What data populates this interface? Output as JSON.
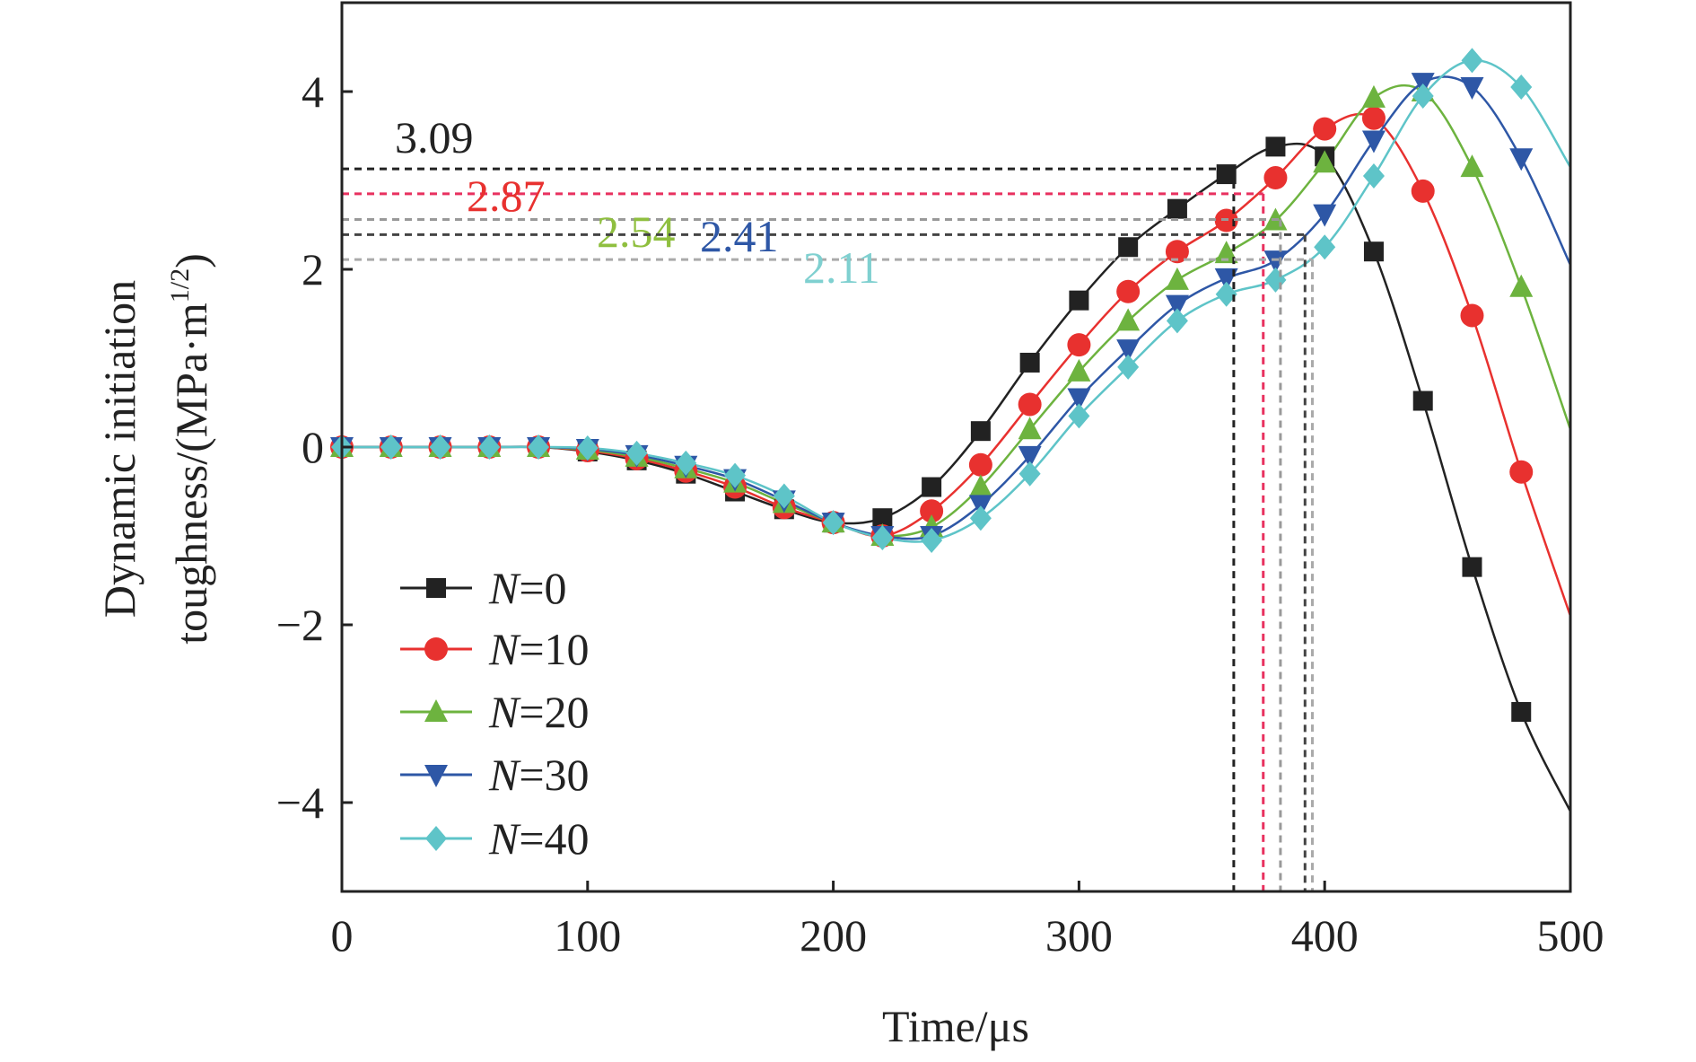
{
  "chart_data": {
    "type": "line",
    "title": "",
    "xlabel": "Time/μs",
    "ylabel_line1": "Dynamic initiation",
    "ylabel_line2": "toughness/(MPa·m",
    "ylabel_sup": "1/2",
    "ylabel_close": ")",
    "xlim": [
      0,
      500
    ],
    "ylim": [
      -5,
      5
    ],
    "xticks": [
      "0",
      "100",
      "200",
      "300",
      "400",
      "500"
    ],
    "xtick_values": [
      0,
      100,
      200,
      300,
      400,
      500
    ],
    "yticks": [
      "−4",
      "−2",
      "0",
      "2",
      "4"
    ],
    "ytick_values": [
      -4,
      -2,
      0,
      2,
      4
    ],
    "grid": false,
    "legend_position": "bottom-left",
    "x": [
      0,
      20,
      40,
      60,
      80,
      100,
      120,
      140,
      160,
      180,
      200,
      220,
      240,
      260,
      280,
      300,
      320,
      340,
      360,
      380,
      400,
      420,
      440,
      460,
      480
    ],
    "series": [
      {
        "name": "N=0",
        "prefix": "N",
        "suffix": "=0",
        "color": "#222222",
        "marker": "square",
        "values": [
          0,
          0,
          0,
          0,
          0,
          -0.05,
          -0.15,
          -0.3,
          -0.5,
          -0.7,
          -0.85,
          -0.8,
          -0.45,
          0.18,
          0.95,
          1.65,
          2.25,
          2.68,
          3.07,
          3.38,
          3.27,
          2.2,
          0.52,
          -1.35,
          -2.98
        ],
        "end_value": -4.1
      },
      {
        "name": "N=10",
        "prefix": "N",
        "suffix": "=10",
        "color": "#e8312f",
        "marker": "circle",
        "values": [
          0,
          0,
          0,
          0,
          0,
          -0.04,
          -0.13,
          -0.27,
          -0.45,
          -0.68,
          -0.85,
          -1.0,
          -0.72,
          -0.2,
          0.48,
          1.15,
          1.75,
          2.2,
          2.55,
          3.03,
          3.58,
          3.7,
          2.88,
          1.48,
          -0.28
        ],
        "end_value": -1.9
      },
      {
        "name": "N=20",
        "prefix": "N",
        "suffix": "=20",
        "color": "#6db33f",
        "marker": "triangle-up",
        "values": [
          0,
          0,
          0,
          0,
          0,
          -0.03,
          -0.11,
          -0.24,
          -0.4,
          -0.63,
          -0.85,
          -1.0,
          -0.9,
          -0.45,
          0.2,
          0.85,
          1.42,
          1.88,
          2.18,
          2.55,
          3.2,
          3.93,
          4.0,
          3.15,
          1.8
        ],
        "end_value": 0.2
      },
      {
        "name": "N=30",
        "prefix": "N",
        "suffix": "=30",
        "color": "#2e57a6",
        "marker": "triangle-down",
        "values": [
          0,
          0,
          0,
          0,
          0,
          -0.02,
          -0.09,
          -0.21,
          -0.36,
          -0.6,
          -0.85,
          -1.0,
          -1.0,
          -0.65,
          -0.1,
          0.55,
          1.1,
          1.6,
          1.9,
          2.1,
          2.62,
          3.45,
          4.1,
          4.05,
          3.25
        ],
        "end_value": 2.05
      },
      {
        "name": "N=40",
        "prefix": "N",
        "suffix": "=40",
        "color": "#5ec4c8",
        "marker": "diamond",
        "values": [
          0,
          0,
          0,
          0,
          0,
          -0.01,
          -0.07,
          -0.18,
          -0.32,
          -0.55,
          -0.85,
          -1.02,
          -1.05,
          -0.8,
          -0.3,
          0.35,
          0.9,
          1.42,
          1.72,
          1.88,
          2.25,
          3.05,
          3.95,
          4.35,
          4.05
        ],
        "end_value": 3.15
      }
    ],
    "annotations": [
      {
        "text": "3.09",
        "value": 3.09,
        "line_y": 3.13,
        "time": 363,
        "color": "#222222",
        "line_color": "#222222"
      },
      {
        "text": "2.87",
        "value": 2.87,
        "line_y": 2.85,
        "time": 375,
        "color": "#e8312f",
        "line_color": "#e8315f"
      },
      {
        "text": "2.54",
        "value": 2.54,
        "line_y": 2.56,
        "time": 382,
        "color": "#8fbf3f",
        "line_color": "#999999"
      },
      {
        "text": "2.41",
        "value": 2.41,
        "line_y": 2.39,
        "time": 392,
        "color": "#2e57a6",
        "line_color": "#444444"
      },
      {
        "text": "2.11",
        "value": 2.11,
        "line_y": 2.11,
        "time": 395,
        "color": "#7fd0d0",
        "line_color": "#aaaaaa"
      }
    ]
  }
}
